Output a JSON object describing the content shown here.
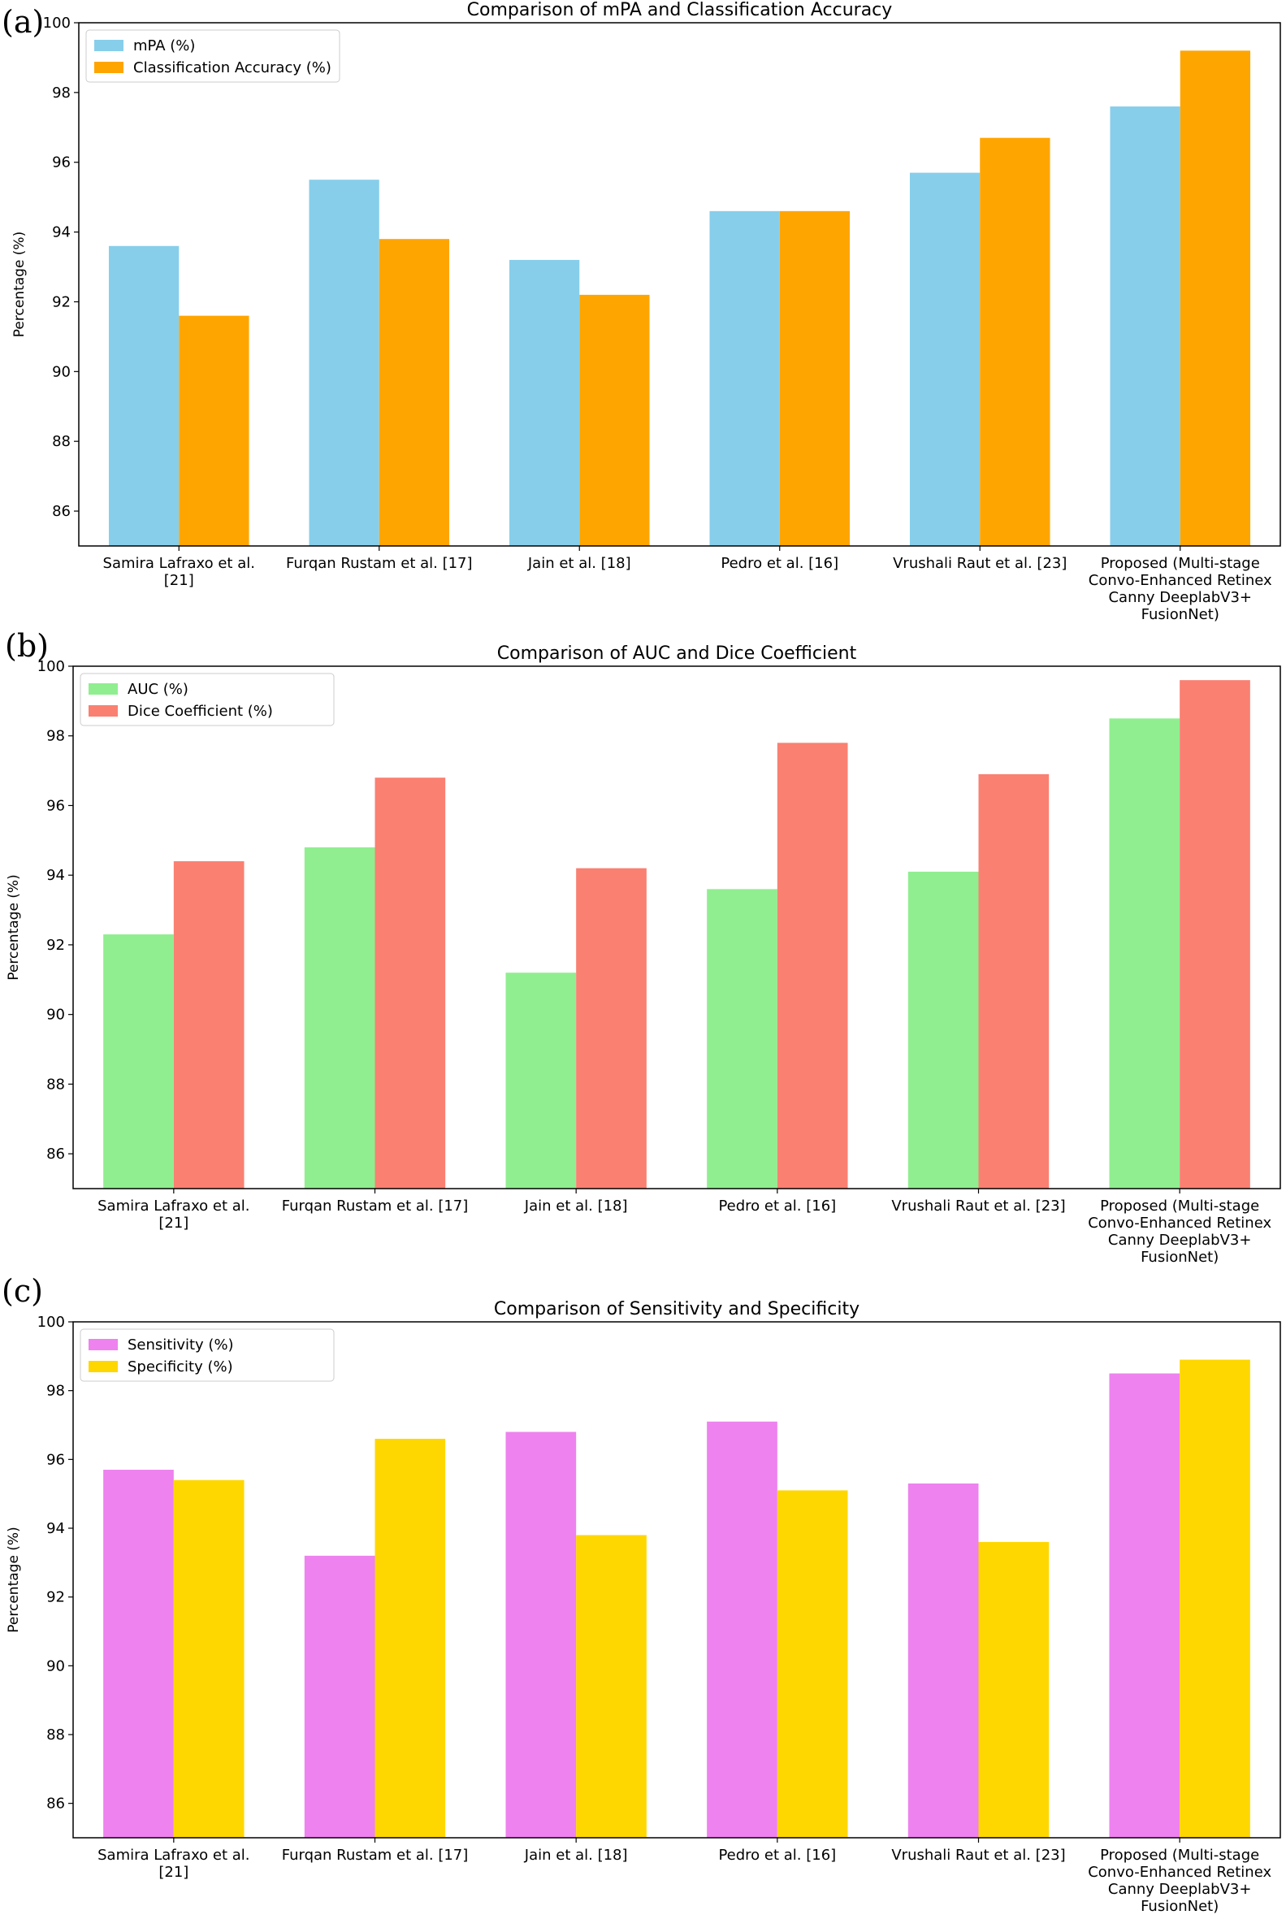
{
  "chart_data": [
    {
      "type": "bar",
      "panel_label": "(a)",
      "title": "Comparison of mPA and Classification Accuracy",
      "xlabel": "",
      "ylabel": "Percentage (%)",
      "ylim": [
        85,
        100
      ],
      "yticks": [
        "86",
        "88",
        "90",
        "92",
        "94",
        "96",
        "98",
        "100"
      ],
      "legend_position": "top-left",
      "categories": [
        [
          "Samira Lafraxo et al.",
          "[21]"
        ],
        [
          "Furqan Rustam et al. [17]"
        ],
        [
          "Jain et al. [18]"
        ],
        [
          "Pedro et al. [16]"
        ],
        [
          "Vrushali Raut et al. [23]"
        ],
        [
          "Proposed (Multi-stage",
          "Convo-Enhanced Retinex",
          "Canny DeeplabV3+",
          "FusionNet)"
        ]
      ],
      "series": [
        {
          "name": "mPA (%)",
          "color": "#87ceeb",
          "values": [
            93.6,
            95.5,
            93.2,
            94.6,
            95.7,
            97.6
          ]
        },
        {
          "name": "Classification Accuracy (%)",
          "color": "#ffa500",
          "values": [
            91.6,
            93.8,
            92.2,
            94.6,
            96.7,
            99.2
          ]
        }
      ]
    },
    {
      "type": "bar",
      "panel_label": "(b)",
      "title": "Comparison of AUC and Dice Coefficient",
      "xlabel": "",
      "ylabel": "Percentage (%)",
      "ylim": [
        85,
        100
      ],
      "yticks": [
        "86",
        "88",
        "90",
        "92",
        "94",
        "96",
        "98",
        "100"
      ],
      "legend_position": "top-left",
      "categories": [
        [
          "Samira Lafraxo et al.",
          "[21]"
        ],
        [
          "Furqan Rustam et al. [17]"
        ],
        [
          "Jain et al. [18]"
        ],
        [
          "Pedro et al. [16]"
        ],
        [
          "Vrushali Raut et al. [23]"
        ],
        [
          "Proposed (Multi-stage",
          "Convo-Enhanced Retinex",
          "Canny DeeplabV3+",
          "FusionNet)"
        ]
      ],
      "series": [
        {
          "name": "AUC (%)",
          "color": "#90ee90",
          "values": [
            92.3,
            94.8,
            91.2,
            93.6,
            94.1,
            98.5
          ]
        },
        {
          "name": "Dice Coefficient (%)",
          "color": "#fa8072",
          "values": [
            94.4,
            96.8,
            94.2,
            97.8,
            96.9,
            99.6
          ]
        }
      ]
    },
    {
      "type": "bar",
      "panel_label": "(c)",
      "title": "Comparison of Sensitivity and Specificity",
      "xlabel": "",
      "ylabel": "Percentage (%)",
      "ylim": [
        85,
        100
      ],
      "yticks": [
        "86",
        "88",
        "90",
        "92",
        "94",
        "96",
        "98",
        "100"
      ],
      "legend_position": "top-left",
      "categories": [
        [
          "Samira Lafraxo et al.",
          "[21]"
        ],
        [
          "Furqan Rustam et al. [17]"
        ],
        [
          "Jain et al. [18]"
        ],
        [
          "Pedro et al. [16]"
        ],
        [
          "Vrushali Raut et al. [23]"
        ],
        [
          "Proposed (Multi-stage",
          "Convo-Enhanced Retinex",
          "Canny DeeplabV3+",
          "FusionNet)"
        ]
      ],
      "series": [
        {
          "name": "Sensitivity (%)",
          "color": "#ee82ee",
          "values": [
            95.7,
            93.2,
            96.8,
            97.1,
            95.3,
            98.5
          ]
        },
        {
          "name": "Specificity (%)",
          "color": "#ffd700",
          "values": [
            95.4,
            96.6,
            93.8,
            95.1,
            93.6,
            98.9
          ]
        }
      ]
    }
  ]
}
